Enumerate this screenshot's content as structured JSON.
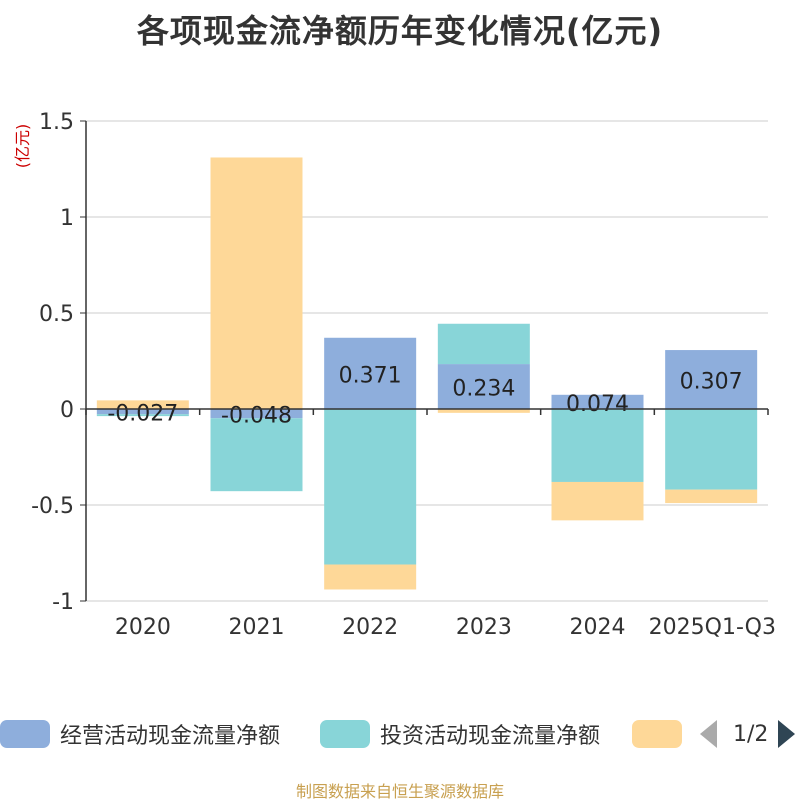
{
  "title": "各项现金流净额历年变化情况(亿元)",
  "source": "制图数据来自恒生聚源数据库",
  "chart_data": {
    "type": "bar",
    "stacked": true,
    "ylabel": "(亿元)",
    "ylim": [
      -1,
      1.5
    ],
    "yticks": [
      1.5,
      1,
      0.5,
      0,
      -0.5,
      -1
    ],
    "ytick_labels": [
      "1.5",
      "1",
      "0.5",
      "0",
      "-0.5",
      "-1"
    ],
    "grid": true,
    "categories": [
      "2020",
      "2021",
      "2022",
      "2023",
      "2024",
      "2025Q1-Q3"
    ],
    "series": [
      {
        "name": "经营活动现金流量净额",
        "color": "#8eaedc",
        "values": [
          -0.027,
          -0.048,
          0.371,
          0.234,
          0.074,
          0.307
        ],
        "labels": [
          "-0.027",
          "-0.048",
          "0.371",
          "0.234",
          "0.074",
          "0.307"
        ]
      },
      {
        "name": "投资活动现金流量净额",
        "color": "#88d5d8",
        "values": [
          -0.01,
          -0.38,
          -0.81,
          0.21,
          -0.38,
          -0.42
        ]
      },
      {
        "name": "",
        "color": "#fed898",
        "values": [
          0.045,
          1.31,
          -0.13,
          -0.02,
          -0.2,
          -0.07
        ]
      }
    ]
  },
  "legend": {
    "page_text": "1/2"
  }
}
